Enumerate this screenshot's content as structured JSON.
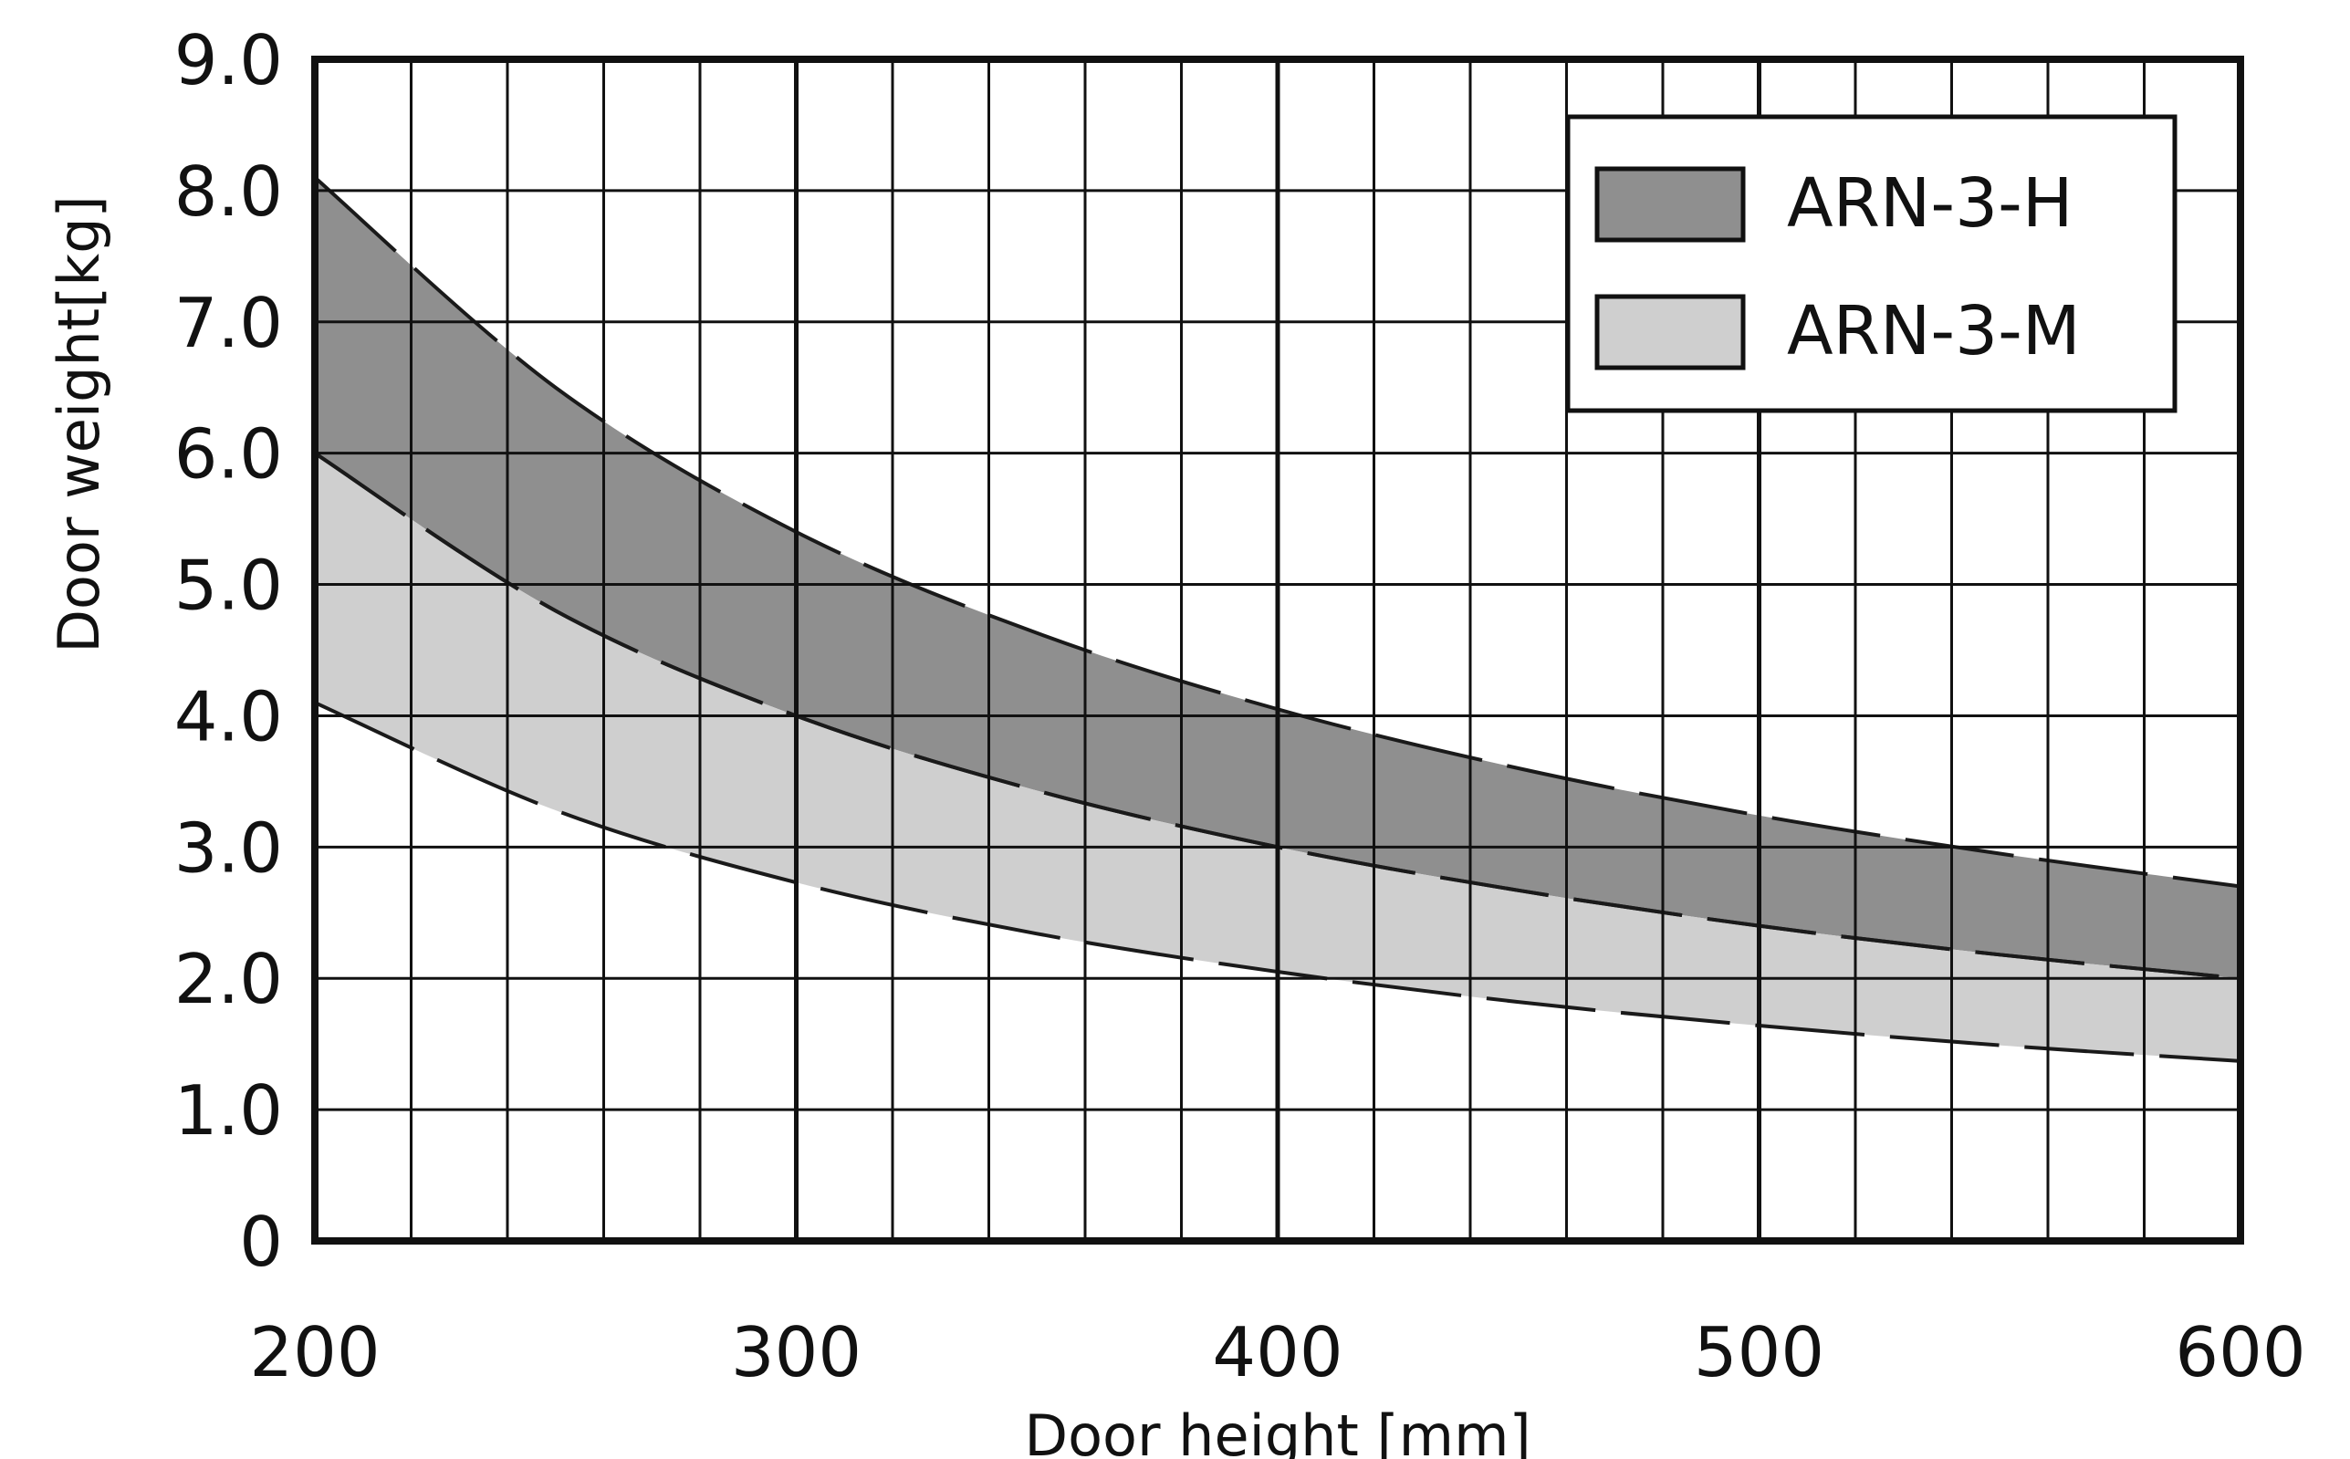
{
  "chart_data": {
    "type": "area",
    "xlabel": "Door height [mm]",
    "ylabel": "Door weight[kg]",
    "xlim": [
      200,
      600
    ],
    "ylim": [
      0,
      9
    ],
    "x_ticks": [
      "200",
      "300",
      "400",
      "500",
      "600"
    ],
    "y_ticks": [
      "0",
      "1.0",
      "2.0",
      "3.0",
      "4.0",
      "5.0",
      "6.0",
      "7.0",
      "8.0",
      "9.0"
    ],
    "grid": true,
    "legend_position": "top-right",
    "x": [
      200,
      250,
      300,
      350,
      400,
      450,
      500,
      550,
      600
    ],
    "series": [
      {
        "name": "ARN-3-H",
        "color": "#8f8f8f",
        "lower": [
          6.0,
          4.8,
          4.0,
          3.43,
          3.0,
          2.67,
          2.4,
          2.18,
          2.0
        ],
        "upper": [
          8.1,
          6.5,
          5.4,
          4.63,
          4.05,
          3.6,
          3.24,
          2.95,
          2.7
        ]
      },
      {
        "name": "ARN-3-M",
        "color": "#cfcfcf",
        "lower": [
          4.1,
          3.28,
          2.73,
          2.34,
          2.05,
          1.82,
          1.64,
          1.49,
          1.37
        ],
        "upper": [
          6.0,
          4.8,
          4.0,
          3.43,
          3.0,
          2.67,
          2.4,
          2.18,
          2.0
        ]
      }
    ]
  }
}
